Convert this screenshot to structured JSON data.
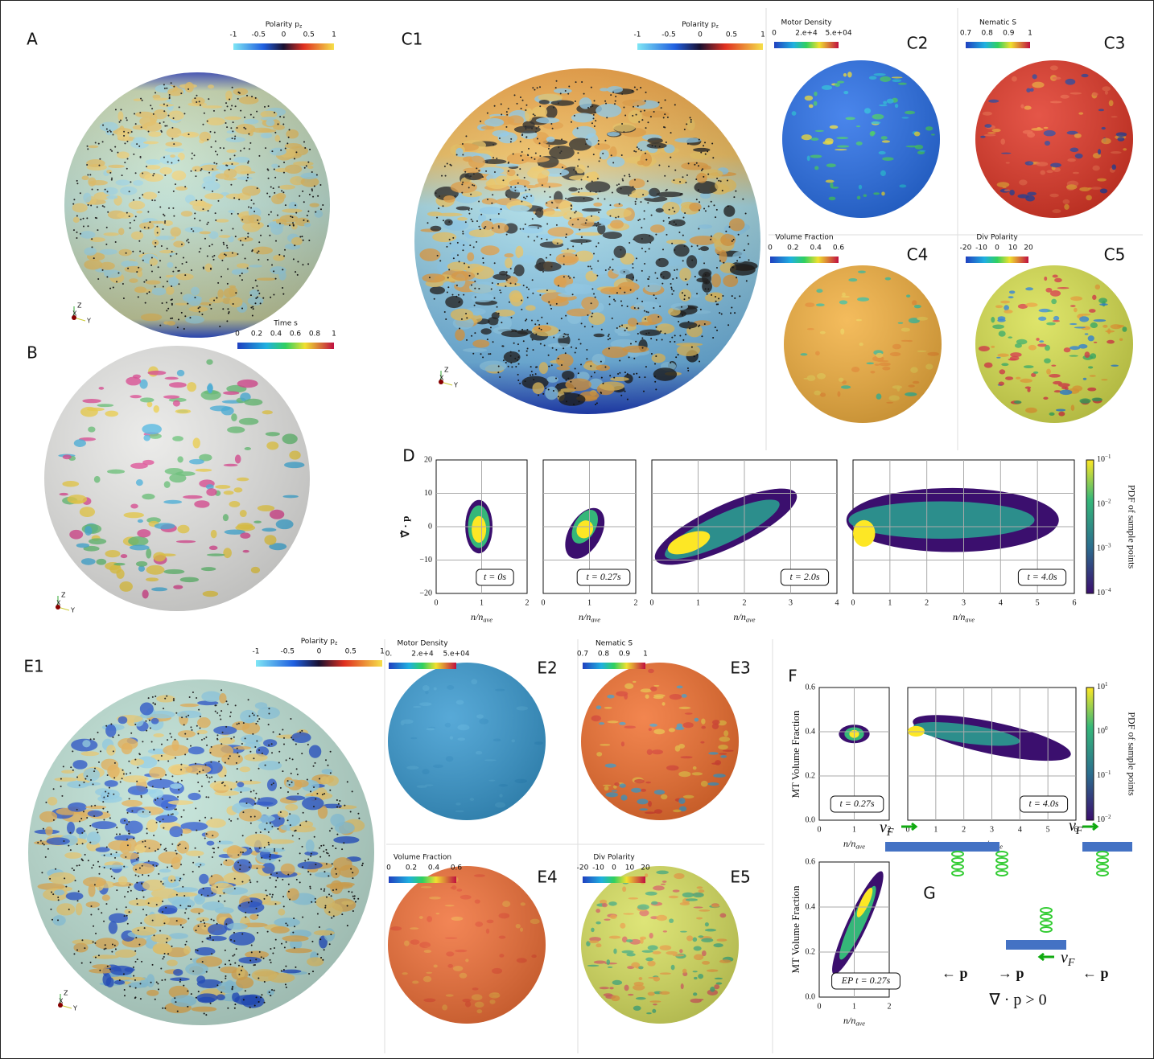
{
  "panel_labels": [
    "A",
    "B",
    "C1",
    "C2",
    "C3",
    "C4",
    "C5",
    "D",
    "E1",
    "E2",
    "E3",
    "E4",
    "E5",
    "F",
    "G"
  ],
  "axis_triad": {
    "z": "Z",
    "x": "X",
    "y": "Y"
  },
  "colorbars": [
    {
      "title": "Polarity p",
      "sub": "z",
      "ticks": [
        "-1",
        "-0.5",
        "0",
        "0.5",
        "1"
      ]
    },
    {
      "title": "Time s",
      "ticks": [
        "0",
        "0.2",
        "0.4",
        "0.6",
        "0.8",
        "1"
      ]
    },
    {
      "title": "Polarity p",
      "sub": "z",
      "ticks": [
        "-1",
        "-0.5",
        "0",
        "0.5",
        "1"
      ]
    },
    {
      "title": "Motor Density",
      "ticks": [
        "0",
        "2.e+4",
        "5.e+04"
      ]
    },
    {
      "title": "Nematic S",
      "ticks": [
        "0.7",
        "0.8",
        "0.9",
        "1"
      ]
    },
    {
      "title": "Volume Fraction",
      "ticks": [
        "0",
        "0.2",
        "0.4",
        "0.6"
      ]
    },
    {
      "title": "Div Polarity",
      "ticks": [
        "-20",
        "-10",
        "0",
        "10",
        "20"
      ]
    },
    {
      "title": "Polarity p",
      "sub": "z",
      "ticks": [
        "-1",
        "-0.5",
        "0",
        "0.5",
        "1"
      ]
    },
    {
      "title": "Motor Density",
      "ticks": [
        "0.",
        "2.e+4",
        "5.e+04"
      ]
    },
    {
      "title": "Nematic S",
      "ticks": [
        "0.7",
        "0.8",
        "0.9",
        "1"
      ]
    },
    {
      "title": "Volume Fraction",
      "ticks": [
        "0",
        "0.2",
        "0.4",
        "0.6"
      ]
    },
    {
      "title": "Div Polarity",
      "ticks": [
        "-20",
        "-10",
        "0",
        "10",
        "20"
      ]
    }
  ],
  "D": {
    "y_label": "∇̂ · p",
    "x_label": "n/n",
    "x_label_sub": "ave",
    "yticks": [
      "20",
      "10",
      "0",
      "−10",
      "−20"
    ],
    "plots": [
      {
        "xticks": [
          "0",
          "1",
          "2"
        ],
        "annotation": "t = 0s"
      },
      {
        "xticks": [
          "0",
          "1",
          "2"
        ],
        "annotation": "t = 0.27s"
      },
      {
        "xticks": [
          "0",
          "1",
          "2",
          "3",
          "4"
        ],
        "annotation": "t = 2.0s"
      },
      {
        "xticks": [
          "0",
          "1",
          "2",
          "3",
          "4",
          "5",
          "6"
        ],
        "annotation": "t = 4.0s"
      }
    ],
    "colorbar": {
      "title": "PDF of sample points",
      "ticks": [
        {
          "base": "10",
          "exp": "−1"
        },
        {
          "base": "10",
          "exp": "−2"
        },
        {
          "base": "10",
          "exp": "−3"
        },
        {
          "base": "10",
          "exp": "−4"
        }
      ]
    }
  },
  "F": {
    "y_label": "MT Volume Fraction",
    "x_label": "n/n",
    "x_label_sub": "ave",
    "yticks": [
      "0.6",
      "0.4",
      "0.2",
      "0.0"
    ],
    "plots": [
      {
        "xticks": [
          "0",
          "1",
          "2"
        ],
        "annotation": "t = 0.27s"
      },
      {
        "xticks": [
          "0",
          "1",
          "2",
          "3",
          "4",
          "5",
          "6"
        ],
        "annotation": "t = 4.0s"
      },
      {
        "xticks": [
          "0",
          "1",
          "2"
        ],
        "annotation": "EP t = 0.27s"
      }
    ],
    "colorbar": {
      "title": "PDF of sample points",
      "ticks": [
        {
          "base": "10",
          "exp": "1"
        },
        {
          "base": "10",
          "exp": "0"
        },
        {
          "base": "10",
          "exp": "−1"
        },
        {
          "base": "10",
          "exp": "−2"
        }
      ]
    }
  },
  "G": {
    "v": "v",
    "v_sub": "F",
    "arrows": [
      "← p",
      "→ p",
      "← p"
    ],
    "condition": "∇ · p > 0"
  }
}
